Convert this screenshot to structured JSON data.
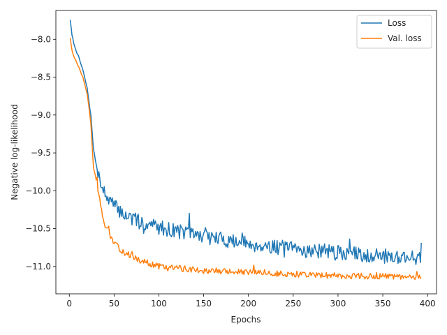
{
  "chart_data": {
    "type": "line",
    "title": "",
    "xlabel": "Epochs",
    "ylabel": "Negative log-likelihood",
    "xlim": [
      -15,
      410
    ],
    "ylim": [
      -11.36,
      -7.62
    ],
    "xticks": [
      0,
      50,
      100,
      150,
      200,
      250,
      300,
      350,
      400
    ],
    "xtick_labels": [
      "0",
      "50",
      "100",
      "150",
      "200",
      "250",
      "300",
      "350",
      "400"
    ],
    "yticks": [
      -8.0,
      -8.5,
      -9.0,
      -9.5,
      -10.0,
      -10.5,
      -11.0
    ],
    "ytick_labels": [
      "−8.0",
      "−8.5",
      "−9.0",
      "−9.5",
      "−10.0",
      "−10.5",
      "−11.0"
    ],
    "grid": false,
    "legend": "top-right",
    "series": [
      {
        "name": "Loss",
        "color": "#1f77b4",
        "keypoints": [
          [
            1,
            -7.74
          ],
          [
            3,
            -7.95
          ],
          [
            6,
            -8.1
          ],
          [
            10,
            -8.22
          ],
          [
            15,
            -8.4
          ],
          [
            20,
            -8.65
          ],
          [
            24,
            -9.0
          ],
          [
            27,
            -9.45
          ],
          [
            30,
            -9.65
          ],
          [
            35,
            -9.9
          ],
          [
            40,
            -10.05
          ],
          [
            50,
            -10.2
          ],
          [
            60,
            -10.3
          ],
          [
            75,
            -10.4
          ],
          [
            100,
            -10.48
          ],
          [
            150,
            -10.6
          ],
          [
            200,
            -10.7
          ],
          [
            250,
            -10.77
          ],
          [
            300,
            -10.82
          ],
          [
            350,
            -10.86
          ],
          [
            393,
            -10.88
          ]
        ],
        "noise": 0.1,
        "seed": 7
      },
      {
        "name": "Val. loss",
        "color": "#ff7f0e",
        "keypoints": [
          [
            1,
            -7.98
          ],
          [
            3,
            -8.15
          ],
          [
            6,
            -8.25
          ],
          [
            10,
            -8.35
          ],
          [
            15,
            -8.5
          ],
          [
            20,
            -8.72
          ],
          [
            24,
            -9.1
          ],
          [
            27,
            -9.7
          ],
          [
            30,
            -9.85
          ],
          [
            35,
            -10.2
          ],
          [
            40,
            -10.45
          ],
          [
            50,
            -10.7
          ],
          [
            60,
            -10.8
          ],
          [
            75,
            -10.9
          ],
          [
            100,
            -11.0
          ],
          [
            150,
            -11.05
          ],
          [
            200,
            -11.08
          ],
          [
            250,
            -11.1
          ],
          [
            300,
            -11.12
          ],
          [
            350,
            -11.13
          ],
          [
            393,
            -11.15
          ]
        ],
        "noise": 0.04,
        "seed": 13
      }
    ]
  }
}
